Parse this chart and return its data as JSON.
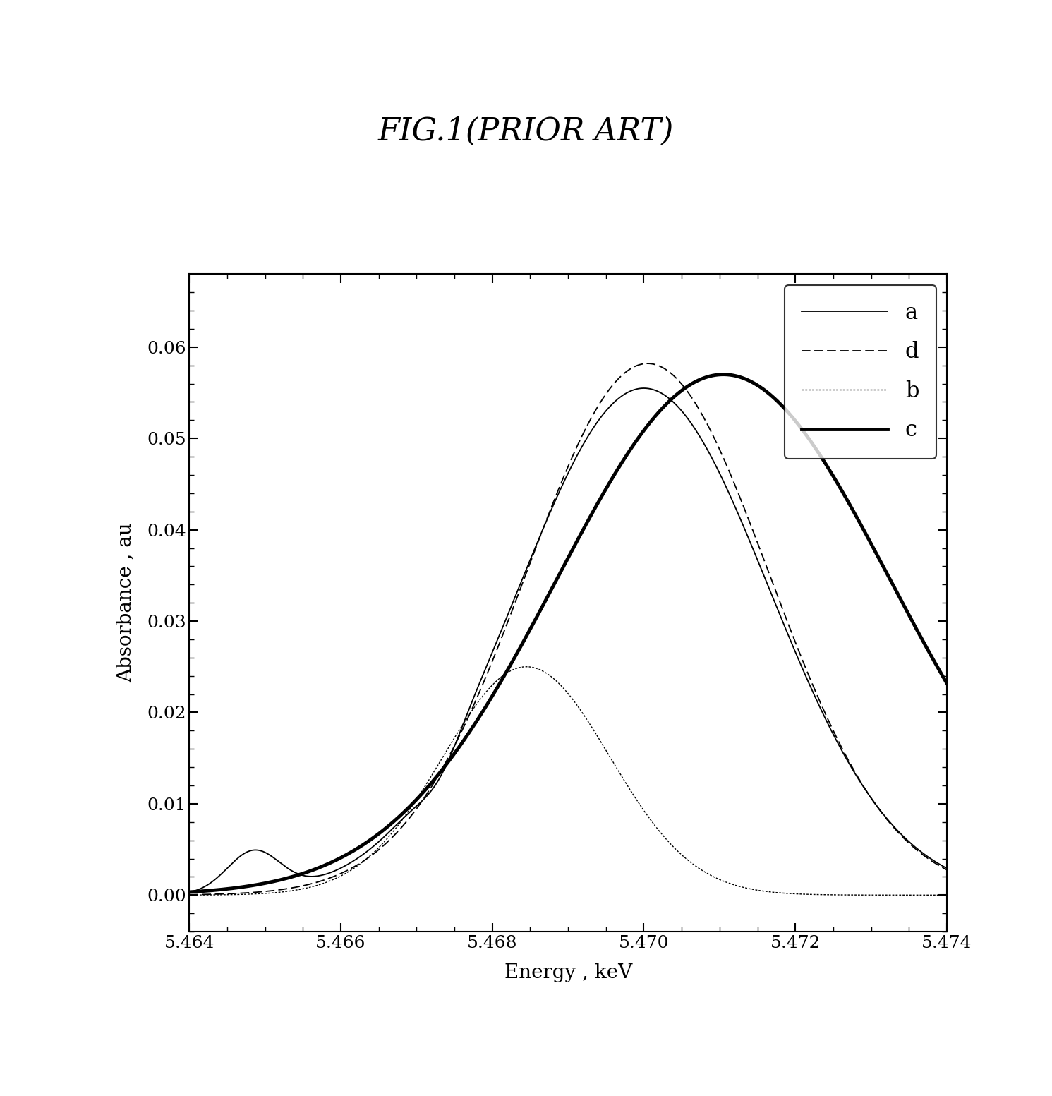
{
  "title": "FIG.1(PRIOR ART)",
  "xlabel": "Energy , keV",
  "ylabel": "Absorbance , au",
  "xlim": [
    5.464,
    5.474
  ],
  "ylim": [
    -0.004,
    0.068
  ],
  "yticks": [
    0.0,
    0.01,
    0.02,
    0.03,
    0.04,
    0.05,
    0.06
  ],
  "xticks": [
    5.464,
    5.466,
    5.468,
    5.47,
    5.472,
    5.474
  ],
  "xticklabels": [
    "5.464",
    "5.466",
    "5.468",
    "5.470",
    "5.472",
    "5.474"
  ],
  "background_color": "#ffffff",
  "curve_a_lw": 1.3,
  "curve_d_lw": 1.3,
  "curve_b_lw": 1.0,
  "curve_c_lw": 3.5
}
